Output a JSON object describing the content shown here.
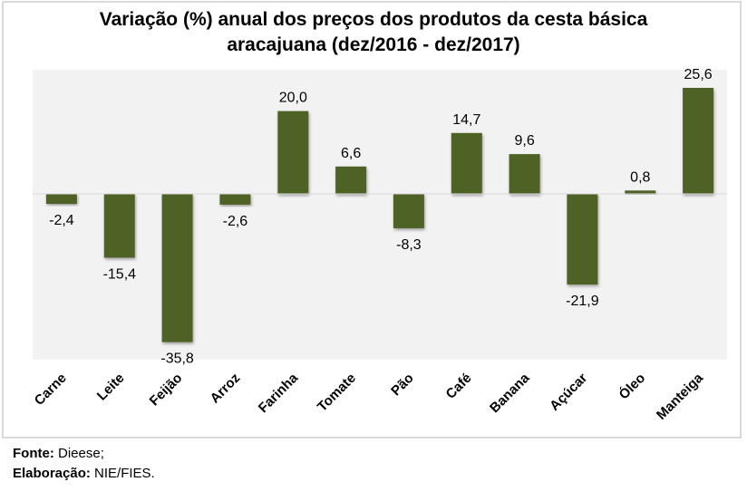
{
  "chart_data": {
    "type": "bar",
    "title": "Variação (%) anual dos preços dos produtos da cesta básica aracajuana (dez/2016 - dez/2017)",
    "title_lines": [
      "Variação  (%) anual  dos  preços  dos  produtos  da  cesta  básica",
      "aracajuana  (dez/2016 - dez/2017)"
    ],
    "categories": [
      "Carne",
      "Leite",
      "Feijão",
      "Arroz",
      "Farinha",
      "Tomate",
      "Pão",
      "Café",
      "Banana",
      "Açúcar",
      "Óleo",
      "Manteiga"
    ],
    "values": [
      -2.4,
      -15.4,
      -35.8,
      -2.6,
      20.0,
      6.6,
      -8.3,
      14.7,
      9.6,
      -21.9,
      0.8,
      25.6
    ],
    "data_labels": [
      "-2,4",
      "-15,4",
      "-35,8",
      "-2,6",
      "20,0",
      "6,6",
      "-8,3",
      "14,7",
      "9,6",
      "-21,9",
      "0,8",
      "25,6"
    ],
    "xlabel": "",
    "ylabel": "",
    "ylim": [
      -40,
      30
    ],
    "grid": false,
    "legend": "none",
    "colors": {
      "bar": "#4f6228",
      "plot_background": "#f2f2f2",
      "zero_line": "#d9d9d9",
      "frame_border": "#d9d9d9"
    }
  },
  "footer": {
    "source_label": "Fonte:",
    "source_value": " Dieese;",
    "credit_label": "Elaboração:",
    "credit_value": " NIE/FIES."
  }
}
